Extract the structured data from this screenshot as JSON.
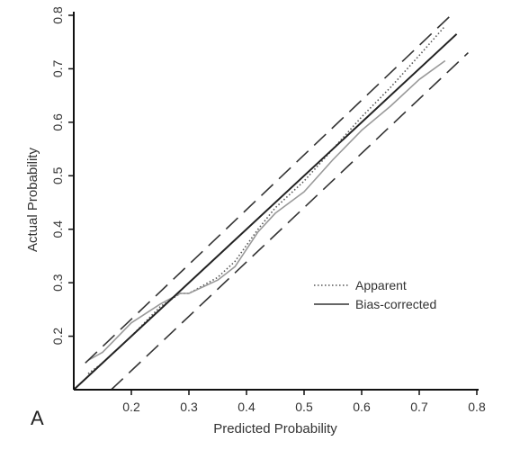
{
  "chart_data": {
    "type": "line",
    "panel_label": "A",
    "xlabel": "Predicted Probability",
    "ylabel": "Actual Probability",
    "xlim": [
      0.1,
      0.8
    ],
    "ylim": [
      0.1,
      0.8
    ],
    "xticks": [
      0.2,
      0.3,
      0.4,
      0.5,
      0.6,
      0.7,
      0.8
    ],
    "yticks": [
      0.2,
      0.3,
      0.4,
      0.5,
      0.6,
      0.7,
      0.8
    ],
    "x_tick_labels": [
      "0.2",
      "0.3",
      "0.4",
      "0.5",
      "0.6",
      "0.7",
      "0.8"
    ],
    "y_tick_labels": [
      "0.2",
      "0.3",
      "0.4",
      "0.5",
      "0.6",
      "0.7",
      "0.8"
    ],
    "grid": false,
    "legend_position": "lower-right",
    "series": [
      {
        "name": "Apparent",
        "style": "dotted",
        "color": "#555555",
        "x": [
          0.125,
          0.15,
          0.2,
          0.25,
          0.285,
          0.3,
          0.35,
          0.38,
          0.42,
          0.45,
          0.5,
          0.55,
          0.6,
          0.65,
          0.7,
          0.745
        ],
        "y": [
          0.13,
          0.15,
          0.2,
          0.255,
          0.28,
          0.28,
          0.31,
          0.34,
          0.4,
          0.44,
          0.49,
          0.55,
          0.61,
          0.665,
          0.725,
          0.78
        ]
      },
      {
        "name": "Bias-corrected",
        "style": "solid",
        "color": "#999999",
        "x": [
          0.125,
          0.15,
          0.2,
          0.25,
          0.285,
          0.3,
          0.35,
          0.38,
          0.42,
          0.45,
          0.5,
          0.55,
          0.6,
          0.65,
          0.7,
          0.745
        ],
        "y": [
          0.155,
          0.17,
          0.225,
          0.26,
          0.28,
          0.28,
          0.305,
          0.33,
          0.395,
          0.43,
          0.47,
          0.53,
          0.585,
          0.63,
          0.68,
          0.715
        ]
      },
      {
        "name": "",
        "style": "solid",
        "color": "#222222",
        "x": [
          0.1,
          0.765
        ],
        "y": [
          0.1,
          0.765
        ]
      },
      {
        "name": "",
        "style": "dashed",
        "color": "#333333",
        "x": [
          0.12,
          0.755
        ],
        "y": [
          0.15,
          0.8
        ]
      },
      {
        "name": "",
        "style": "dashed",
        "color": "#333333",
        "x": [
          0.165,
          0.785
        ],
        "y": [
          0.1,
          0.73
        ]
      }
    ]
  }
}
